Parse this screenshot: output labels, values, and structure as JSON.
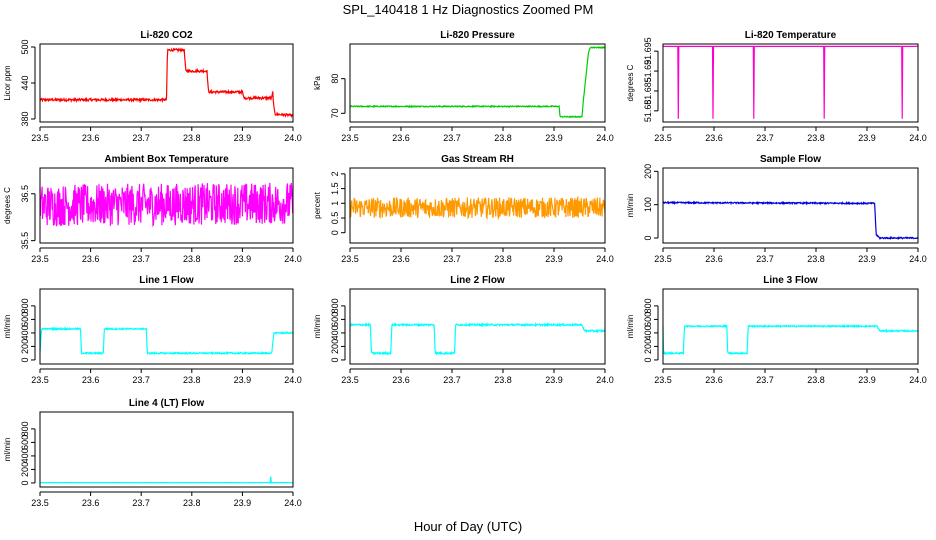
{
  "title": "SPL_140418  1 Hz Diagnostics Zoomed PM",
  "xlabel": "Hour of Day (UTC)",
  "chart_data": [
    {
      "type": "line",
      "title": "Li-820 CO2",
      "ylabel": "Licor ppm",
      "color": "#ff0000",
      "xlim": [
        23.5,
        24.0
      ],
      "ylim": [
        375,
        505
      ],
      "yticks": [
        380,
        440,
        500
      ],
      "xticks": [
        23.5,
        23.6,
        23.7,
        23.8,
        23.9,
        24.0
      ],
      "noise": 2,
      "x": [
        23.5,
        23.75,
        23.752,
        23.785,
        23.788,
        23.83,
        23.833,
        23.9,
        23.903,
        23.958,
        23.96,
        23.962,
        23.965,
        24.0
      ],
      "y": [
        412,
        412,
        495,
        495,
        460,
        460,
        425,
        425,
        415,
        415,
        425,
        400,
        388,
        386
      ]
    },
    {
      "type": "line",
      "title": "Li-820 Pressure",
      "ylabel": "kPa",
      "color": "#00cc00",
      "xlim": [
        23.5,
        24.0
      ],
      "ylim": [
        67.5,
        90
      ],
      "yticks": [
        70,
        80
      ],
      "xticks": [
        23.5,
        23.6,
        23.7,
        23.8,
        23.9,
        24.0
      ],
      "noise": 0.15,
      "x": [
        23.5,
        23.91,
        23.912,
        23.955,
        23.957,
        23.968,
        23.972,
        24.0
      ],
      "y": [
        72,
        72,
        69,
        69,
        73,
        88,
        89,
        89
      ]
    },
    {
      "type": "line",
      "title": "Li-820 Temperature",
      "ylabel": "degrees C",
      "color": "#ff00cc",
      "xlim": [
        23.5,
        24.0
      ],
      "ylim": [
        51.6772,
        51.6968
      ],
      "yticks": [
        51.68,
        51.685,
        51.69,
        51.695
      ],
      "xticks": [
        23.5,
        23.6,
        23.7,
        23.8,
        23.9,
        24.0
      ],
      "noise": 0,
      "x": [
        23.5,
        23.529,
        23.53,
        23.531,
        23.597,
        23.598,
        23.599,
        23.677,
        23.678,
        23.679,
        23.815,
        23.816,
        23.817,
        23.968,
        23.969,
        23.97,
        24.0
      ],
      "y": [
        51.6962,
        51.6962,
        51.678,
        51.6962,
        51.6962,
        51.678,
        51.6962,
        51.6962,
        51.678,
        51.6962,
        51.6962,
        51.678,
        51.6962,
        51.6962,
        51.678,
        51.6962,
        51.6962
      ]
    },
    {
      "type": "line",
      "title": "Ambient Box Temperature",
      "ylabel": "degrees C",
      "color": "#ff00ff",
      "xlim": [
        23.5,
        24.0
      ],
      "ylim": [
        35.45,
        37.05
      ],
      "yticks": [
        35.5,
        36.5
      ],
      "xticks": [
        23.5,
        23.6,
        23.7,
        23.8,
        23.9,
        24.0
      ],
      "noise": 0.45,
      "x": [
        23.5,
        24.0
      ],
      "y": [
        36.25,
        36.3
      ]
    },
    {
      "type": "line",
      "title": "Gas Stream RH",
      "ylabel": "percent",
      "color": "#ff9900",
      "xlim": [
        23.5,
        24.0
      ],
      "ylim": [
        -0.35,
        2.2
      ],
      "yticks": [
        0.0,
        0.5,
        1.0,
        1.5,
        2.0
      ],
      "xticks": [
        23.5,
        23.6,
        23.7,
        23.8,
        23.9,
        24.0
      ],
      "noise": 0.35,
      "x": [
        23.5,
        24.0
      ],
      "y": [
        0.85,
        0.85
      ]
    },
    {
      "type": "line",
      "title": "Sample Flow",
      "ylabel": "ml/min",
      "color": "#0000dd",
      "xlim": [
        23.5,
        24.0
      ],
      "ylim": [
        -15,
        210
      ],
      "yticks": [
        0,
        100,
        200
      ],
      "xticks": [
        23.5,
        23.6,
        23.7,
        23.8,
        23.9,
        24.0
      ],
      "noise": 2,
      "x": [
        23.5,
        23.915,
        23.918,
        23.925,
        24.0
      ],
      "y": [
        106,
        104,
        10,
        0,
        0
      ]
    },
    {
      "type": "line",
      "title": "Line 1 Flow",
      "ylabel": "ml/min",
      "color": "#00ffff",
      "xlim": [
        23.5,
        24.0
      ],
      "ylim": [
        -60,
        1050
      ],
      "yticks": [
        0,
        200,
        400,
        600,
        800
      ],
      "xticks": [
        23.5,
        23.6,
        23.7,
        23.8,
        23.9,
        24.0
      ],
      "noise": 10,
      "x": [
        23.5,
        23.503,
        23.58,
        23.582,
        23.625,
        23.627,
        23.71,
        23.712,
        23.958,
        23.962,
        24.0
      ],
      "y": [
        100,
        460,
        460,
        100,
        100,
        460,
        460,
        100,
        100,
        400,
        400
      ]
    },
    {
      "type": "line",
      "title": "Line 2 Flow",
      "ylabel": "ml/min",
      "color": "#00ffff",
      "xlim": [
        23.5,
        24.0
      ],
      "ylim": [
        -60,
        1050
      ],
      "yticks": [
        0,
        200,
        400,
        600,
        800
      ],
      "xticks": [
        23.5,
        23.6,
        23.7,
        23.8,
        23.9,
        24.0
      ],
      "noise": 12,
      "x": [
        23.5,
        23.54,
        23.542,
        23.58,
        23.582,
        23.665,
        23.667,
        23.705,
        23.707,
        23.955,
        23.96,
        24.0
      ],
      "y": [
        520,
        520,
        100,
        100,
        520,
        520,
        100,
        100,
        520,
        520,
        430,
        430
      ]
    },
    {
      "type": "line",
      "title": "Line 3 Flow",
      "ylabel": "ml/min",
      "color": "#00ffff",
      "xlim": [
        23.5,
        24.0
      ],
      "ylim": [
        -60,
        1050
      ],
      "yticks": [
        0,
        200,
        400,
        600,
        800
      ],
      "xticks": [
        23.5,
        23.6,
        23.7,
        23.8,
        23.9,
        24.0
      ],
      "noise": 10,
      "x": [
        23.5,
        23.501,
        23.503,
        23.54,
        23.542,
        23.625,
        23.627,
        23.665,
        23.667,
        23.92,
        23.925,
        24.0
      ],
      "y": [
        500,
        100,
        100,
        100,
        500,
        500,
        100,
        100,
        500,
        500,
        430,
        430
      ]
    },
    {
      "type": "line",
      "title": "Line 4 (LT) Flow",
      "ylabel": "ml/min",
      "color": "#00ffff",
      "xlim": [
        23.5,
        24.0
      ],
      "ylim": [
        -60,
        1050
      ],
      "yticks": [
        0,
        200,
        400,
        600,
        800
      ],
      "xticks": [
        23.5,
        23.6,
        23.7,
        23.8,
        23.9,
        24.0
      ],
      "noise": 1,
      "x": [
        23.5,
        23.955,
        23.956,
        23.957,
        23.958,
        24.0
      ],
      "y": [
        5,
        5,
        110,
        5,
        5,
        5
      ]
    }
  ]
}
